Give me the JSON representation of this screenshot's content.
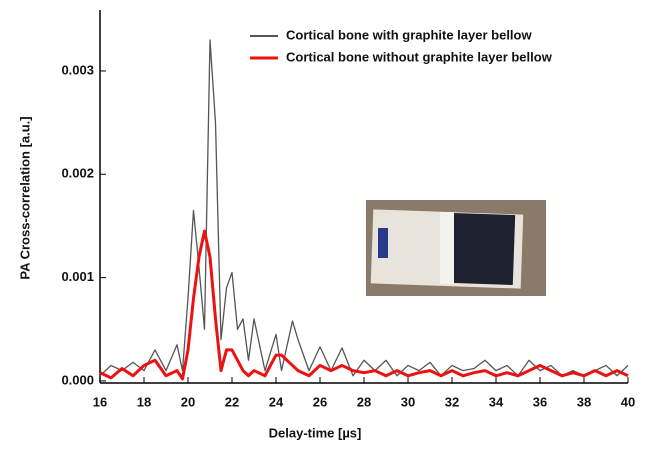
{
  "chart_data": {
    "type": "line",
    "xlabel": "Delay-time [µs]",
    "ylabel": "PA Cross-correlation [a.u.]",
    "x": [
      16,
      16.5,
      17,
      17.5,
      18,
      18.5,
      19,
      19.5,
      19.75,
      20,
      20.25,
      20.5,
      20.75,
      21,
      21.25,
      21.5,
      21.75,
      22,
      22.25,
      22.5,
      22.75,
      23,
      23.5,
      24,
      24.25,
      24.75,
      25,
      25.5,
      26,
      26.5,
      27,
      27.5,
      28,
      28.5,
      29,
      29.5,
      30,
      30.5,
      31,
      31.5,
      32,
      32.5,
      33,
      33.5,
      34,
      34.5,
      35,
      35.5,
      36,
      36.5,
      37,
      37.5,
      38,
      38.5,
      39,
      39.5,
      40
    ],
    "series": [
      {
        "name": "Cortical bone with graphite layer bellow",
        "color": "#555555",
        "values": [
          5e-05,
          0.00015,
          0.0001,
          0.00018,
          0.0001,
          0.0003,
          0.0001,
          0.00035,
          0.0001,
          0.0008,
          0.00165,
          0.0011,
          0.0005,
          0.0033,
          0.0025,
          0.0004,
          0.0009,
          0.00105,
          0.0005,
          0.0006,
          0.0002,
          0.0006,
          0.0001,
          0.00045,
          0.0001,
          0.00058,
          0.0004,
          0.0001,
          0.00033,
          0.0001,
          0.00032,
          5e-05,
          0.0002,
          0.0001,
          0.0002,
          5e-05,
          0.00015,
          0.0001,
          0.00018,
          5e-05,
          0.00015,
          0.0001,
          0.00012,
          0.0002,
          0.0001,
          0.00015,
          5e-05,
          0.0002,
          0.0001,
          0.00015,
          5e-05,
          0.0001,
          5e-05,
          0.0001,
          0.00015,
          5e-05,
          0.00015
        ]
      },
      {
        "name": "Cortical bone without graphite layer bellow",
        "color": "#ee1111",
        "values": [
          8e-05,
          3e-05,
          0.00012,
          5e-05,
          0.00015,
          0.0002,
          5e-05,
          0.0001,
          2e-05,
          0.0003,
          0.0008,
          0.0012,
          0.00145,
          0.0012,
          0.0006,
          0.0001,
          0.0003,
          0.0003,
          0.0002,
          0.0001,
          5e-05,
          0.0001,
          5e-05,
          0.00025,
          0.00025,
          0.00015,
          0.0001,
          5e-05,
          0.00015,
          0.0001,
          0.00015,
          0.0001,
          8e-05,
          0.0001,
          5e-05,
          0.0001,
          5e-05,
          8e-05,
          0.0001,
          5e-05,
          0.0001,
          5e-05,
          8e-05,
          0.0001,
          5e-05,
          8e-05,
          5e-05,
          0.0001,
          0.00015,
          0.0001,
          5e-05,
          8e-05,
          5e-05,
          0.0001,
          5e-05,
          0.0001,
          5e-05
        ]
      }
    ],
    "xlim": [
      16,
      40
    ],
    "xticks": [
      16,
      18,
      20,
      22,
      24,
      26,
      28,
      30,
      32,
      34,
      36,
      38,
      40
    ],
    "ylim": [
      -2e-05,
      0.00359
    ],
    "yticks": [
      {
        "value": 0,
        "label": "0.000"
      },
      {
        "value": 0.001,
        "label": "0.001"
      },
      {
        "value": 0.002,
        "label": "0.002"
      },
      {
        "value": 0.003,
        "label": "0.003"
      }
    ],
    "legend": "top-right"
  }
}
